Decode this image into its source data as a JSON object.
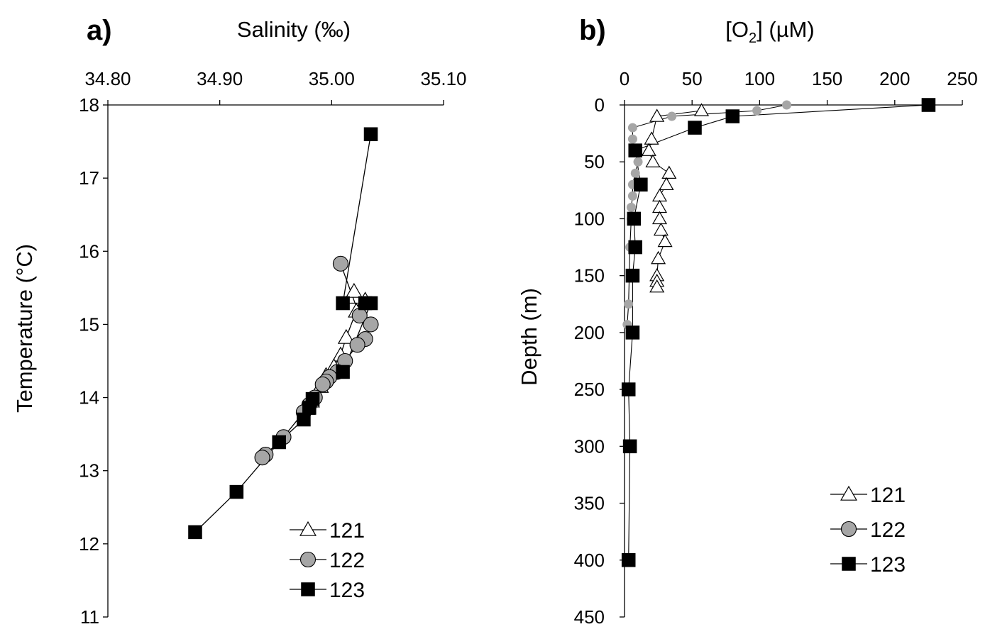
{
  "chart_data": [
    {
      "type": "line",
      "panel_label": "a)",
      "xlabel": "Salinity (‰)",
      "ylabel": "Temperature (°C)",
      "x_axis_position": "top",
      "xlim": [
        34.8,
        35.1
      ],
      "ylim": [
        11,
        18
      ],
      "x_ticks": [
        "34.80",
        "34.90",
        "35.00",
        "35.10"
      ],
      "y_ticks": [
        "11",
        "12",
        "13",
        "14",
        "15",
        "16",
        "17",
        "18"
      ],
      "grid": false,
      "legend_position": "bottom-right",
      "series": [
        {
          "name": "121",
          "marker": "triangle-open",
          "x": [
            35.02,
            35.03,
            35.022,
            35.013,
            35.008,
            35.002,
            34.995,
            34.99,
            34.982,
            34.978
          ],
          "y": [
            15.45,
            15.33,
            15.18,
            14.82,
            14.58,
            14.42,
            14.3,
            14.15,
            13.95,
            13.85
          ]
        },
        {
          "name": "122",
          "marker": "circle-gray",
          "x": [
            35.008,
            35.025,
            35.035,
            35.03,
            35.023,
            35.012,
            35.005,
            34.998,
            34.995,
            34.992,
            34.985,
            34.98,
            34.975,
            34.957,
            34.941,
            34.938
          ],
          "y": [
            15.83,
            15.12,
            15.0,
            14.8,
            14.72,
            14.5,
            14.35,
            14.28,
            14.22,
            14.18,
            14.0,
            13.9,
            13.8,
            13.46,
            13.22,
            13.18
          ]
        },
        {
          "name": "123",
          "marker": "square-filled",
          "x": [
            35.035,
            35.01,
            35.03,
            35.035,
            35.01,
            34.983,
            34.98,
            34.975,
            34.953,
            34.915,
            34.878
          ],
          "y": [
            17.6,
            15.29,
            15.29,
            15.29,
            14.35,
            13.98,
            13.86,
            13.7,
            13.39,
            12.71,
            12.16
          ]
        }
      ]
    },
    {
      "type": "line",
      "panel_label": "b)",
      "xlabel_main": "[O",
      "xlabel_sub": "2",
      "xlabel_tail": "] (µM)",
      "ylabel": "Depth (m)",
      "x_axis_position": "top",
      "y_inverted": true,
      "xlim": [
        0,
        250
      ],
      "ylim": [
        0,
        450
      ],
      "x_ticks": [
        "0",
        "50",
        "100",
        "150",
        "200",
        "250"
      ],
      "y_ticks": [
        "0",
        "50",
        "100",
        "150",
        "200",
        "250",
        "300",
        "350",
        "400",
        "450"
      ],
      "grid": false,
      "legend_position": "bottom-right",
      "series": [
        {
          "name": "121",
          "marker": "triangle-open",
          "x": [
            57,
            24,
            20,
            18,
            21,
            33,
            31,
            26,
            26,
            26,
            27,
            30,
            25,
            24,
            24,
            24
          ],
          "y": [
            5,
            10,
            30,
            40,
            50,
            60,
            70,
            80,
            90,
            100,
            110,
            120,
            135,
            150,
            155,
            160
          ]
        },
        {
          "name": "122",
          "marker": "circle-gray",
          "x": [
            120,
            98,
            35,
            6,
            6,
            10,
            8,
            6,
            6,
            5,
            5,
            4,
            3,
            2
          ],
          "y": [
            0,
            5,
            10,
            20,
            30,
            50,
            60,
            70,
            80,
            90,
            100,
            125,
            175,
            193
          ]
        },
        {
          "name": "123",
          "marker": "square-filled",
          "x": [
            225,
            80,
            52,
            8,
            12,
            7,
            8,
            6,
            6,
            3,
            4,
            3
          ],
          "y": [
            0,
            10,
            20,
            40,
            70,
            100,
            125,
            150,
            200,
            250,
            300,
            400
          ]
        }
      ]
    }
  ]
}
